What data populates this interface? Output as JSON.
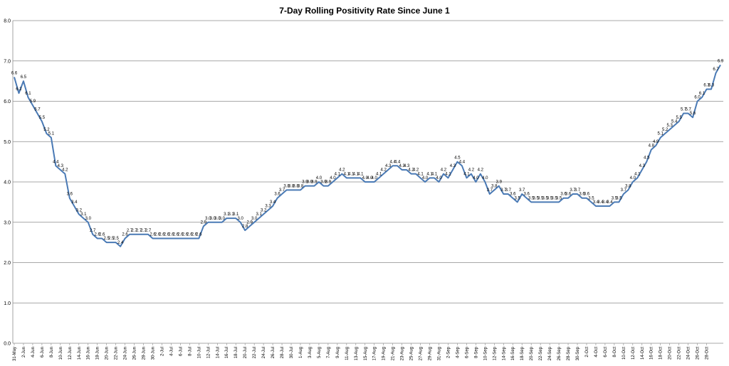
{
  "chart_data": {
    "type": "line",
    "title": "7-Day Rolling Positivity Rate Since June 1",
    "xlabel": "",
    "ylabel": "",
    "ylim": [
      0,
      8
    ],
    "yticks": [
      "0.0",
      "1.0",
      "2.0",
      "3.0",
      "4.0",
      "5.0",
      "6.0",
      "7.0",
      "8.0"
    ],
    "grid": true,
    "legend": "none",
    "series_color": "#4a7ab5",
    "x_tick_labels": [
      "31-May",
      "2-Jun",
      "4-Jun",
      "6-Jun",
      "8-Jun",
      "10-Jun",
      "12-Jun",
      "14-Jun",
      "16-Jun",
      "18-Jun",
      "20-Jun",
      "22-Jun",
      "24-Jun",
      "26-Jun",
      "28-Jun",
      "30-Jun",
      "2-Jul",
      "4-Jul",
      "6-Jul",
      "8-Jul",
      "10-Jul",
      "12-Jul",
      "14-Jul",
      "16-Jul",
      "18-Jul",
      "20-Jul",
      "22-Jul",
      "24-Jul",
      "26-Jul",
      "28-Jul",
      "30-Jul",
      "1-Aug",
      "3-Aug",
      "5-Aug",
      "7-Aug",
      "9-Aug",
      "11-Aug",
      "13-Aug",
      "15-Aug",
      "17-Aug",
      "19-Aug",
      "21-Aug",
      "23-Aug",
      "25-Aug",
      "27-Aug",
      "29-Aug",
      "31-Aug",
      "2-Sep",
      "4-Sep",
      "6-Sep",
      "8-Sep",
      "10-Sep",
      "12-Sep",
      "14-Sep",
      "16-Sep",
      "18-Sep",
      "20-Sep",
      "22-Sep",
      "24-Sep",
      "26-Sep",
      "28-Sep",
      "30-Sep",
      "2-Oct",
      "4-Oct",
      "6-Oct",
      "8-Oct",
      "10-Oct",
      "12-Oct",
      "14-Oct",
      "16-Oct",
      "18-Oct",
      "20-Oct",
      "22-Oct",
      "24-Oct",
      "26-Oct",
      "28-Oct"
    ],
    "series": [
      {
        "values": [
          6.6,
          6.2,
          6.5,
          6.1,
          5.9,
          5.7,
          5.5,
          5.2,
          5.1,
          4.4,
          4.3,
          4.2,
          3.6,
          3.4,
          3.2,
          3.1,
          3.0,
          2.7,
          2.6,
          2.6,
          2.5,
          2.5,
          2.5,
          2.4,
          2.6,
          2.7,
          2.7,
          2.7,
          2.7,
          2.7,
          2.6,
          2.6,
          2.6,
          2.6,
          2.6,
          2.6,
          2.6,
          2.6,
          2.6,
          2.6,
          2.6,
          2.9,
          3.0,
          3.0,
          3.0,
          3.0,
          3.1,
          3.1,
          3.1,
          3.0,
          2.8,
          2.9,
          3.0,
          3.1,
          3.2,
          3.3,
          3.4,
          3.6,
          3.7,
          3.8,
          3.8,
          3.8,
          3.8,
          3.9,
          3.9,
          3.9,
          4.0,
          3.9,
          3.9,
          4.0,
          4.1,
          4.2,
          4.1,
          4.1,
          4.1,
          4.1,
          4.0,
          4.0,
          4.0,
          4.1,
          4.2,
          4.3,
          4.4,
          4.4,
          4.3,
          4.3,
          4.2,
          4.2,
          4.1,
          4.0,
          4.1,
          4.1,
          4.0,
          4.2,
          4.1,
          4.3,
          4.5,
          4.4,
          4.1,
          4.2,
          4.0,
          4.2,
          4.0,
          3.7,
          3.8,
          3.9,
          3.7,
          3.7,
          3.6,
          3.5,
          3.7,
          3.6,
          3.5,
          3.5,
          3.5,
          3.5,
          3.5,
          3.5,
          3.5,
          3.6,
          3.6,
          3.7,
          3.7,
          3.6,
          3.6,
          3.5,
          3.4,
          3.4,
          3.4,
          3.4,
          3.5,
          3.5,
          3.7,
          3.8,
          4.0,
          4.1,
          4.3,
          4.5,
          4.8,
          4.9,
          5.1,
          5.2,
          5.3,
          5.4,
          5.5,
          5.7,
          5.7,
          5.6,
          6.0,
          6.1,
          6.3,
          6.3,
          6.7,
          6.9
        ]
      }
    ],
    "data_labels": [
      "6.6",
      "6.2",
      "6.5",
      "6.1",
      "5.9",
      "5.7",
      "5.5",
      "5.2",
      "5.1",
      "4.4",
      "4.3",
      "4.2",
      "3.6",
      "3.4",
      "3.2",
      "3.1",
      "3.0",
      "2.7",
      "2.6",
      "2.6",
      "2.5",
      "2.5",
      "2.5",
      "2.4",
      "2.6",
      "2.7",
      "2.7",
      "2.7",
      "2.7",
      "2.7",
      "2.6",
      "2.6",
      "2.6",
      "2.6",
      "2.6",
      "2.6",
      "2.6",
      "2.6",
      "2.6",
      "2.6",
      "2.6",
      "2.9",
      "3.0",
      "3.0",
      "3.0",
      "3.0",
      "3.1",
      "3.1",
      "3.1",
      "3.0",
      "2.8",
      "2.9",
      "3.0",
      "3.1",
      "3.2",
      "3.3",
      "3.4",
      "3.6",
      "3.7",
      "3.8",
      "3.8",
      "3.8",
      "3.8",
      "3.9",
      "3.9",
      "3.9",
      "4.0",
      "3.9",
      "3.9",
      "4.0",
      "4.1",
      "4.2",
      "4.1",
      "4.1",
      "4.1",
      "4.1",
      "4.0",
      "4.0",
      "4.0",
      "4.1",
      "4.2",
      "4.3",
      "4.4",
      "4.4",
      "4.3",
      "4.3",
      "4.2",
      "4.2",
      "4.1",
      "4.0",
      "4.1",
      "4.1",
      "4.0",
      "4.2",
      "4.1",
      "4.3",
      "4.5",
      "4.4",
      "4.1",
      "4.2",
      "4.0",
      "4.2",
      "4.0",
      "3.7",
      "3.8",
      "3.9",
      "3.7",
      "3.7",
      "3.6",
      "3.5",
      "3.7",
      "3.6",
      "3.5",
      "3.5",
      "3.5",
      "3.5",
      "3.5",
      "3.5",
      "3.5",
      "3.6",
      "3.6",
      "3.7",
      "3.7",
      "3.6",
      "3.6",
      "3.5",
      "3.4",
      "3.4",
      "3.4",
      "3.4",
      "3.5",
      "3.5",
      "3.7",
      "3.8",
      "4.0",
      "4.1",
      "4.3",
      "4.5",
      "4.8",
      "4.9",
      "5.1",
      "5.2",
      "5.3",
      "5.4",
      "5.5",
      "5.7",
      "5.7",
      "5.6",
      "6.0",
      "6.1",
      "6.3",
      "6.3",
      "6.7",
      "6.9"
    ]
  }
}
